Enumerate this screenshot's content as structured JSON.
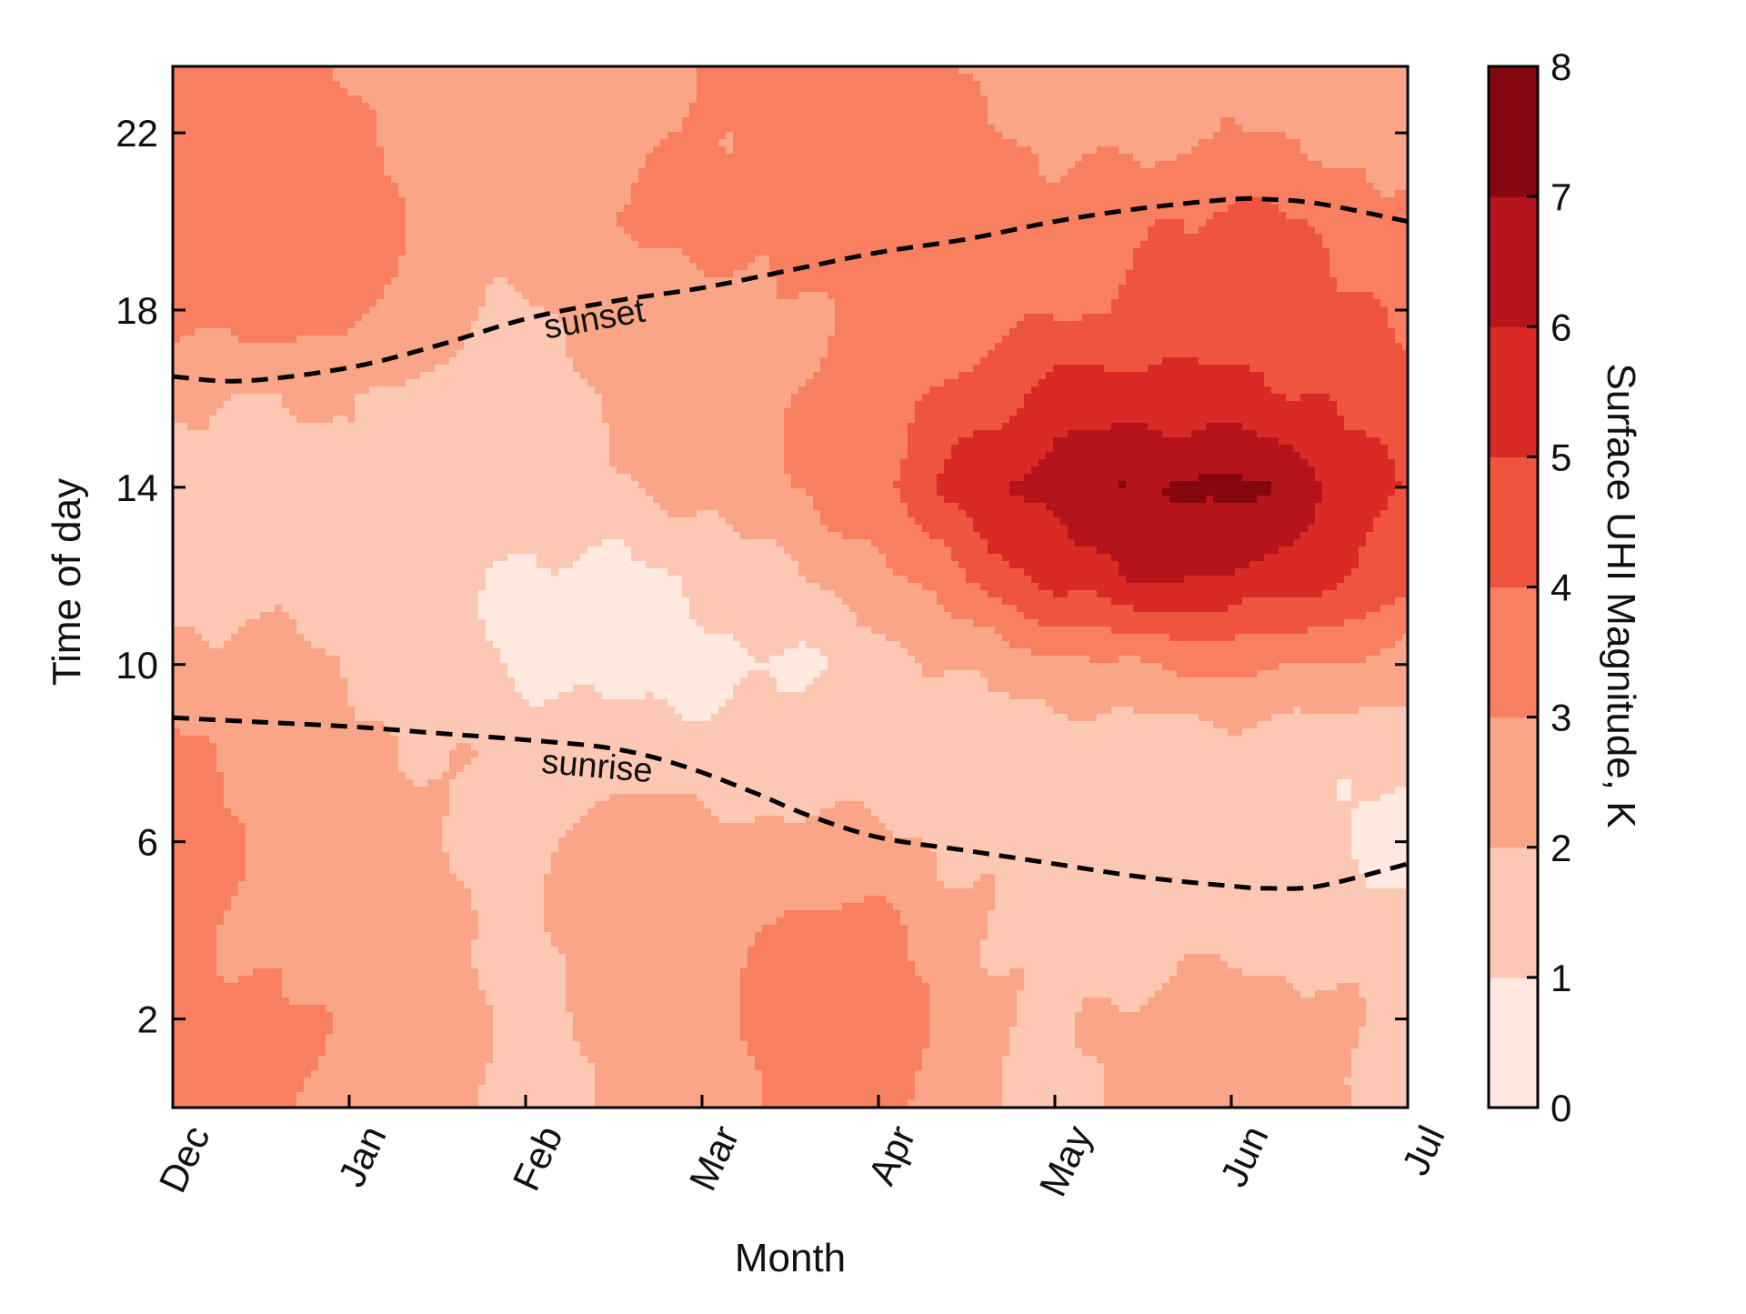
{
  "chart_data": {
    "type": "heatmap",
    "style": "filled-contour",
    "xlabel": "Month",
    "ylabel": "Time of day",
    "colorbar_label": "Surface UHI Magnitude, K",
    "x_categories": [
      "Dec",
      "Jan",
      "Feb",
      "Mar",
      "Apr",
      "May",
      "Jun",
      "Jul"
    ],
    "x_range": [
      0,
      7
    ],
    "y_range": [
      0,
      23.5
    ],
    "y_ticks": [
      2,
      6,
      10,
      14,
      18,
      22
    ],
    "colorbar_ticks": [
      0,
      1,
      2,
      3,
      4,
      5,
      6,
      7,
      8
    ],
    "colorbar_range": [
      0,
      8
    ],
    "levels": [
      {
        "range": [
          0,
          1
        ],
        "color": "#fee8e0"
      },
      {
        "range": [
          1,
          2
        ],
        "color": "#fcc8b4"
      },
      {
        "range": [
          2,
          3
        ],
        "color": "#faa587"
      },
      {
        "range": [
          3,
          4
        ],
        "color": "#f87f5f"
      },
      {
        "range": [
          4,
          5
        ],
        "color": "#ef553e"
      },
      {
        "range": [
          5,
          6
        ],
        "color": "#d92a26"
      },
      {
        "range": [
          6,
          7
        ],
        "color": "#b5141a"
      },
      {
        "range": [
          7,
          8
        ],
        "color": "#850710"
      }
    ],
    "field_rows_hour": [
      0,
      2,
      4,
      6,
      8,
      10,
      12,
      14,
      16,
      18,
      20,
      22,
      23.5
    ],
    "field_cols_month": [
      0,
      0.5,
      1,
      1.5,
      2,
      2.5,
      3,
      3.5,
      4,
      4.5,
      5,
      5.5,
      6,
      6.5,
      7
    ],
    "field_values_K": [
      [
        3.3,
        3.4,
        2.6,
        2.5,
        1.4,
        2.3,
        2.5,
        3.4,
        3.6,
        2.4,
        1.6,
        2.2,
        2.4,
        2.6,
        1.4
      ],
      [
        3.4,
        3.3,
        2.7,
        2.4,
        1.5,
        2.5,
        2.6,
        3.4,
        3.4,
        2.5,
        1.7,
        2.3,
        2.6,
        2.4,
        1.5
      ],
      [
        3.5,
        2.6,
        2.6,
        2.3,
        1.7,
        2.6,
        2.5,
        3.3,
        3.3,
        2.2,
        1.6,
        1.6,
        1.6,
        1.5,
        1.4
      ],
      [
        3.6,
        2.7,
        2.6,
        2.2,
        1.6,
        2.6,
        2.4,
        2.2,
        2.3,
        1.8,
        1.5,
        1.4,
        1.3,
        1.2,
        0.6
      ],
      [
        3.2,
        2.6,
        2.2,
        2.0,
        1.7,
        1.5,
        1.4,
        1.4,
        1.5,
        1.5,
        1.3,
        1.3,
        1.4,
        1.3,
        1.1
      ],
      [
        2.3,
        2.4,
        1.9,
        1.6,
        0.8,
        0.6,
        0.7,
        0.8,
        1.5,
        2.2,
        2.6,
        3.0,
        3.2,
        3.0,
        2.5
      ],
      [
        1.7,
        1.5,
        1.7,
        1.4,
        0.8,
        0.7,
        1.2,
        1.9,
        2.6,
        4.0,
        5.5,
        6.2,
        6.0,
        5.4,
        4.5
      ],
      [
        1.5,
        1.3,
        1.6,
        1.7,
        1.5,
        1.9,
        2.3,
        2.9,
        3.9,
        5.5,
        6.5,
        7.0,
        7.4,
        6.2,
        4.9
      ],
      [
        2.1,
        2.0,
        2.1,
        1.7,
        1.4,
        2.1,
        2.5,
        2.9,
        3.4,
        4.4,
        5.5,
        5.6,
        5.3,
        5.1,
        4.2
      ],
      [
        3.4,
        3.5,
        3.3,
        2.4,
        1.9,
        2.3,
        2.5,
        3.0,
        3.1,
        3.5,
        3.8,
        4.2,
        4.3,
        4.1,
        4.0
      ],
      [
        3.6,
        3.7,
        3.5,
        2.6,
        2.3,
        3.2,
        3.3,
        3.4,
        3.6,
        3.5,
        3.5,
        3.7,
        4.4,
        3.8,
        3.2
      ],
      [
        3.4,
        3.6,
        3.3,
        2.4,
        2.4,
        2.7,
        3.1,
        3.3,
        3.5,
        3.3,
        2.8,
        2.6,
        3.0,
        2.8,
        2.5
      ],
      [
        3.3,
        3.4,
        2.8,
        2.5,
        2.5,
        2.6,
        3.2,
        3.3,
        3.3,
        3.0,
        2.5,
        2.4,
        2.5,
        2.6,
        2.5
      ]
    ],
    "series": [
      {
        "name": "sunset",
        "style": "dashed",
        "x": [
          0,
          0.4,
          1,
          1.5,
          2,
          2.5,
          3,
          3.5,
          4,
          4.5,
          5,
          5.5,
          6,
          6.2,
          6.5,
          7
        ],
        "y": [
          16.5,
          16.4,
          16.7,
          17.2,
          17.8,
          18.2,
          18.5,
          18.9,
          19.3,
          19.6,
          20.0,
          20.3,
          20.5,
          20.5,
          20.4,
          20.0
        ]
      },
      {
        "name": "sunrise",
        "style": "dashed",
        "x": [
          0,
          0.5,
          1,
          1.5,
          2,
          2.5,
          2.9,
          3.3,
          3.6,
          4,
          4.5,
          5,
          5.5,
          6,
          6.2,
          6.5,
          7
        ],
        "y": [
          8.8,
          8.7,
          8.6,
          8.45,
          8.3,
          8.1,
          7.7,
          7.1,
          6.6,
          6.1,
          5.8,
          5.5,
          5.2,
          5.0,
          4.95,
          5.0,
          5.5
        ]
      }
    ],
    "annotations": [
      {
        "text": "sunset",
        "x": 2.4,
        "y": 17.55
      },
      {
        "text": "sunrise",
        "x": 2.4,
        "y": 7.45
      }
    ]
  }
}
